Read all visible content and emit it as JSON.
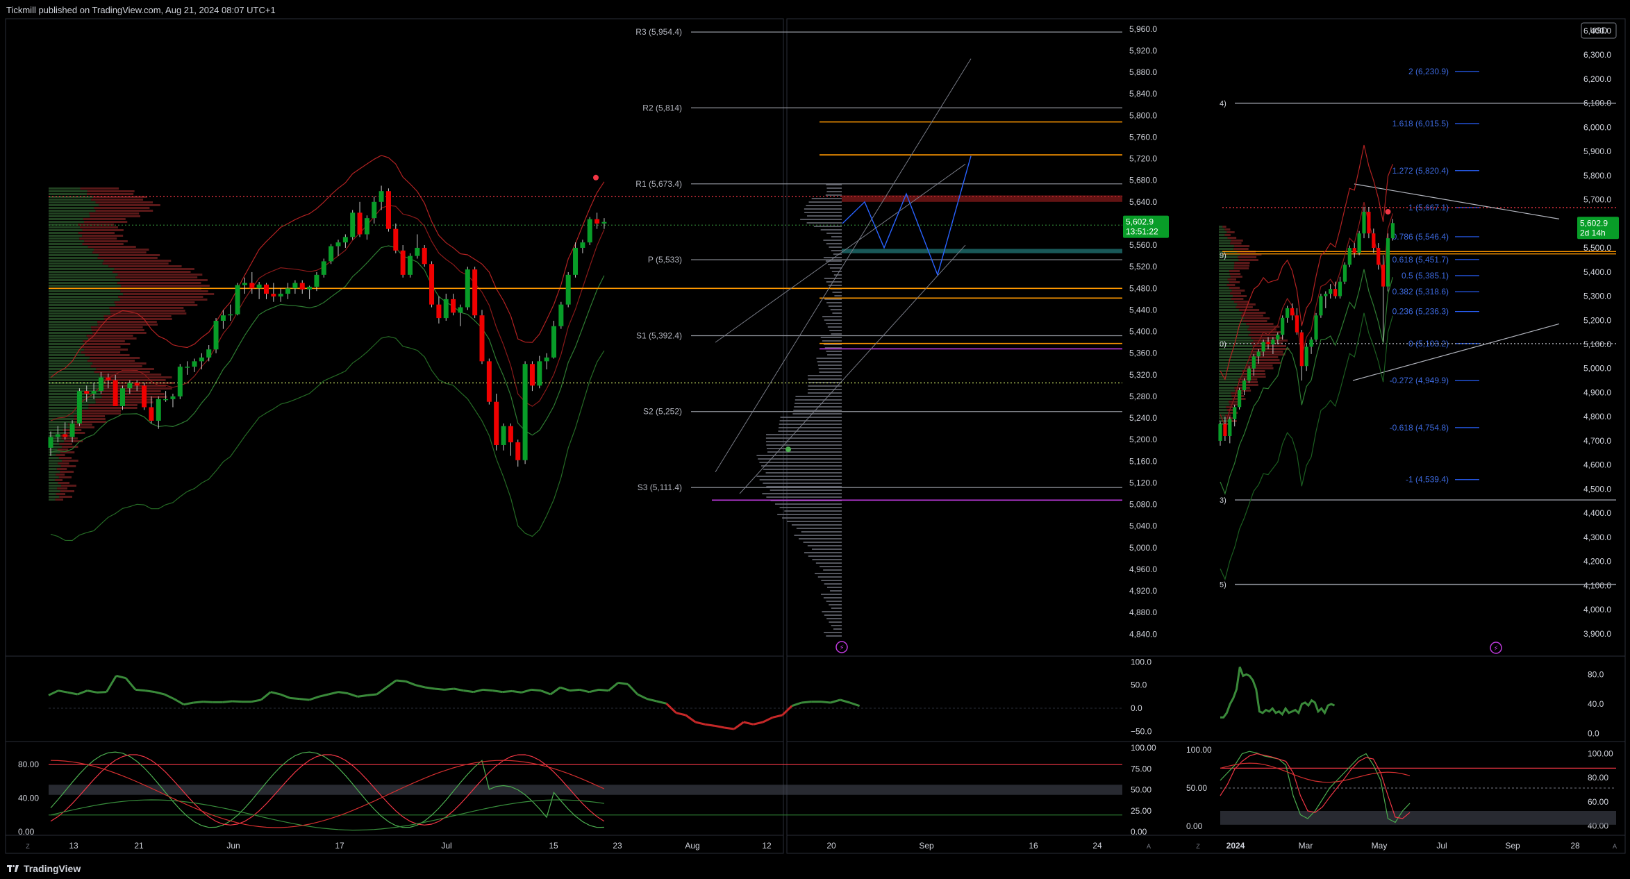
{
  "header": {
    "publisher_text": "Tickmill published on TradingView.com, Aug 21, 2024 08:07 UTC+1"
  },
  "footer": {
    "brand": "TradingView"
  },
  "colors": {
    "up": "#089d28",
    "down": "#f00000",
    "band_red": "#b22222",
    "band_green": "#2e7d32",
    "blue": "#2962ff",
    "orange": "#ff9800",
    "purple": "#c03adf",
    "teal": "#1f6f6f"
  },
  "chart_data": [
    {
      "type": "candlestick",
      "name_hint": "daily",
      "price_axis": [
        "5,960.0",
        "5,920.0",
        "5,880.0",
        "5,840.0",
        "5,800.0",
        "5,760.0",
        "5,720.0",
        "5,680.0",
        "5,640.0",
        "5,600.0",
        "5,560.0",
        "5,520.0",
        "5,480.0",
        "5,440.0",
        "5,400.0",
        "5,360.0",
        "5,320.0",
        "5,280.0",
        "5,240.0",
        "5,200.0",
        "5,160.0",
        "5,120.0",
        "5,080.0",
        "5,040.0",
        "5,000.0",
        "4,960.0",
        "4,920.0",
        "4,880.0",
        "4,840.0"
      ],
      "ylim": [
        4825,
        5970
      ],
      "time_axis": [
        "13",
        "21",
        "Jun",
        "17",
        "Jul",
        "15",
        "23",
        "Aug",
        "12",
        "20",
        "Sep",
        "16",
        "24"
      ],
      "last_price": "5,602.9",
      "countdown": "13:51:22",
      "pivots": [
        {
          "label": "R3 (5,954.4)",
          "value": 5954.4
        },
        {
          "label": "R2 (5,814)",
          "value": 5814
        },
        {
          "label": "R1 (5,673.4)",
          "value": 5673.4
        },
        {
          "label": "P (5,533)",
          "value": 5533
        },
        {
          "label": "S1 (5,392.4)",
          "value": 5392.4
        },
        {
          "label": "S2 (5,252)",
          "value": 5252
        },
        {
          "label": "S3 (5,111.4)",
          "value": 5111.4
        }
      ],
      "candles": [
        [
          5185,
          5215,
          5170,
          5205
        ],
        [
          5205,
          5225,
          5195,
          5210
        ],
        [
          5210,
          5232,
          5200,
          5205
        ],
        [
          5205,
          5236,
          5195,
          5230
        ],
        [
          5230,
          5295,
          5225,
          5290
        ],
        [
          5290,
          5300,
          5270,
          5285
        ],
        [
          5285,
          5305,
          5275,
          5290
        ],
        [
          5290,
          5325,
          5285,
          5315
        ],
        [
          5315,
          5322,
          5295,
          5310
        ],
        [
          5310,
          5320,
          5265,
          5262
        ],
        [
          5262,
          5300,
          5255,
          5295
        ],
        [
          5295,
          5310,
          5285,
          5305
        ],
        [
          5305,
          5310,
          5290,
          5300
        ],
        [
          5300,
          5305,
          5255,
          5260
        ],
        [
          5260,
          5280,
          5230,
          5235
        ],
        [
          5235,
          5280,
          5220,
          5275
        ],
        [
          5275,
          5290,
          5270,
          5275
        ],
        [
          5275,
          5285,
          5260,
          5280
        ],
        [
          5280,
          5340,
          5275,
          5335
        ],
        [
          5335,
          5345,
          5320,
          5335
        ],
        [
          5335,
          5350,
          5325,
          5345
        ],
        [
          5345,
          5360,
          5330,
          5352
        ],
        [
          5352,
          5375,
          5345,
          5367
        ],
        [
          5367,
          5425,
          5360,
          5420
        ],
        [
          5420,
          5440,
          5405,
          5430
        ],
        [
          5430,
          5450,
          5420,
          5432
        ],
        [
          5432,
          5490,
          5430,
          5486
        ],
        [
          5486,
          5500,
          5470,
          5490
        ],
        [
          5490,
          5510,
          5470,
          5480
        ],
        [
          5480,
          5492,
          5460,
          5487
        ],
        [
          5487,
          5490,
          5460,
          5470
        ],
        [
          5470,
          5490,
          5455,
          5465
        ],
        [
          5465,
          5480,
          5455,
          5470
        ],
        [
          5470,
          5490,
          5460,
          5480
        ],
        [
          5480,
          5495,
          5470,
          5490
        ],
        [
          5490,
          5495,
          5470,
          5478
        ],
        [
          5478,
          5485,
          5460,
          5483
        ],
        [
          5483,
          5510,
          5475,
          5505
        ],
        [
          5505,
          5535,
          5500,
          5530
        ],
        [
          5530,
          5562,
          5525,
          5558
        ],
        [
          5558,
          5570,
          5540,
          5565
        ],
        [
          5565,
          5580,
          5555,
          5575
        ],
        [
          5575,
          5625,
          5570,
          5620
        ],
        [
          5620,
          5640,
          5575,
          5580
        ],
        [
          5580,
          5615,
          5570,
          5610
        ],
        [
          5610,
          5650,
          5600,
          5640
        ],
        [
          5640,
          5670,
          5625,
          5660
        ],
        [
          5660,
          5665,
          5585,
          5590
        ],
        [
          5590,
          5600,
          5545,
          5550
        ],
        [
          5550,
          5560,
          5500,
          5505
        ],
        [
          5505,
          5545,
          5500,
          5540
        ],
        [
          5540,
          5580,
          5535,
          5555
        ],
        [
          5555,
          5560,
          5520,
          5525
        ],
        [
          5525,
          5530,
          5445,
          5450
        ],
        [
          5450,
          5465,
          5415,
          5425
        ],
        [
          5425,
          5470,
          5420,
          5460
        ],
        [
          5460,
          5470,
          5430,
          5435
        ],
        [
          5435,
          5450,
          5410,
          5445
        ],
        [
          5445,
          5520,
          5440,
          5515
        ],
        [
          5515,
          5520,
          5425,
          5430
        ],
        [
          5430,
          5440,
          5340,
          5345
        ],
        [
          5345,
          5350,
          5265,
          5270
        ],
        [
          5270,
          5285,
          5180,
          5190
        ],
        [
          5190,
          5230,
          5180,
          5225
        ],
        [
          5225,
          5230,
          5170,
          5195
        ],
        [
          5195,
          5200,
          5150,
          5162
        ],
        [
          5162,
          5345,
          5155,
          5340
        ],
        [
          5340,
          5345,
          5290,
          5300
        ],
        [
          5300,
          5355,
          5295,
          5345
        ],
        [
          5345,
          5360,
          5330,
          5352
        ],
        [
          5352,
          5420,
          5350,
          5410
        ],
        [
          5410,
          5455,
          5405,
          5450
        ],
        [
          5450,
          5510,
          5445,
          5505
        ],
        [
          5505,
          5565,
          5500,
          5555
        ],
        [
          5555,
          5570,
          5545,
          5565
        ],
        [
          5565,
          5612,
          5560,
          5608
        ],
        [
          5608,
          5620,
          5590,
          5600
        ],
        [
          5600,
          5610,
          5590,
          5602.9
        ]
      ]
    },
    {
      "type": "candlestick",
      "name_hint": "weekly",
      "currency": "USD",
      "price_axis": [
        "6,400.0",
        "6,300.0",
        "6,200.0",
        "6,100.0",
        "6,000.0",
        "5,900.0",
        "5,800.0",
        "5,700.0",
        "5,600.0",
        "5,500.0",
        "5,400.0",
        "5,300.0",
        "5,200.0",
        "5,100.0",
        "5,000.0",
        "4,900.0",
        "4,800.0",
        "4,700.0",
        "4,600.0",
        "4,500.0",
        "4,400.0",
        "4,300.0",
        "4,200.0",
        "4,100.0",
        "4,000.0",
        "3,900.0"
      ],
      "ylim": [
        3865,
        6430
      ],
      "time_axis": [
        "2024",
        "Mar",
        "May",
        "Jul",
        "Sep",
        "28"
      ],
      "last_price": "5,602.9",
      "countdown": "2d 14h",
      "fib_levels": [
        {
          "label": "2 (6,230.9)",
          "value": 6230.9
        },
        {
          "label": "1.618 (6,015.5)",
          "value": 6015.5
        },
        {
          "label": "1.272 (5,820.4)",
          "value": 5820.4
        },
        {
          "label": "1 (5,667.1)",
          "value": 5667.1
        },
        {
          "label": "0.786 (5,546.4)",
          "value": 5546.4
        },
        {
          "label": "0.618 (5,451.7)",
          "value": 5451.7
        },
        {
          "label": "0.5 (5,385.1)",
          "value": 5385.1
        },
        {
          "label": "0.382 (5,318.6)",
          "value": 5318.6
        },
        {
          "label": "0.236 (5,236.3)",
          "value": 5236.3
        },
        {
          "label": "0 (5,103.2)",
          "value": 5103.2
        },
        {
          "label": "-0.272 (4,949.9)",
          "value": 4949.9
        },
        {
          "label": "-0.618 (4,754.8)",
          "value": 4754.8
        },
        {
          "label": "-1 (4,539.4)",
          "value": 4539.4
        }
      ],
      "edge_labels": [
        "4)",
        "9)",
        "0)",
        "3)",
        "5)"
      ],
      "candles": [
        [
          4700,
          4780,
          4680,
          4770
        ],
        [
          4770,
          4800,
          4700,
          4720
        ],
        [
          4720,
          4800,
          4690,
          4790
        ],
        [
          4790,
          4850,
          4760,
          4840
        ],
        [
          4840,
          4920,
          4830,
          4910
        ],
        [
          4910,
          4960,
          4890,
          4950
        ],
        [
          4950,
          5010,
          4940,
          5000
        ],
        [
          5000,
          5060,
          4970,
          5050
        ],
        [
          5050,
          5080,
          5020,
          5070
        ],
        [
          5070,
          5120,
          5050,
          5110
        ],
        [
          5110,
          5130,
          5080,
          5100
        ],
        [
          5100,
          5130,
          5060,
          5120
        ],
        [
          5120,
          5150,
          5100,
          5140
        ],
        [
          5140,
          5220,
          5120,
          5210
        ],
        [
          5210,
          5260,
          5190,
          5250
        ],
        [
          5250,
          5270,
          5200,
          5220
        ],
        [
          5220,
          5250,
          5140,
          5150
        ],
        [
          5150,
          5160,
          4950,
          5010
        ],
        [
          5010,
          5100,
          4990,
          5090
        ],
        [
          5090,
          5130,
          5060,
          5120
        ],
        [
          5120,
          5230,
          5110,
          5220
        ],
        [
          5220,
          5310,
          5210,
          5300
        ],
        [
          5300,
          5320,
          5250,
          5310
        ],
        [
          5310,
          5350,
          5290,
          5330
        ],
        [
          5330,
          5360,
          5290,
          5300
        ],
        [
          5300,
          5380,
          5290,
          5360
        ],
        [
          5360,
          5440,
          5350,
          5430
        ],
        [
          5430,
          5510,
          5420,
          5500
        ],
        [
          5500,
          5520,
          5460,
          5480
        ],
        [
          5480,
          5570,
          5470,
          5560
        ],
        [
          5560,
          5670,
          5540,
          5650
        ],
        [
          5650,
          5670,
          5540,
          5560
        ],
        [
          5560,
          5580,
          5480,
          5500
        ],
        [
          5500,
          5520,
          5410,
          5430
        ],
        [
          5430,
          5470,
          5110,
          5340
        ],
        [
          5340,
          5560,
          5320,
          5540
        ],
        [
          5540,
          5620,
          5530,
          5602.9
        ]
      ]
    },
    {
      "type": "line",
      "name_hint": "daily oscillator 1",
      "ticks": [
        "100.0",
        "50.0",
        "0.0",
        "−50.0"
      ],
      "ylim": [
        -60,
        105
      ],
      "values": [
        28,
        38,
        34,
        30,
        38,
        34,
        35,
        70,
        65,
        40,
        38,
        35,
        30,
        20,
        8,
        12,
        14,
        13,
        13,
        15,
        14,
        14,
        18,
        35,
        30,
        22,
        20,
        18,
        25,
        30,
        35,
        32,
        25,
        28,
        30,
        45,
        60,
        58,
        50,
        45,
        42,
        40,
        42,
        38,
        35,
        40,
        38,
        35,
        37,
        34,
        40,
        38,
        30,
        45,
        38,
        40,
        35,
        40,
        38,
        55,
        52,
        30,
        20,
        15,
        10,
        -10,
        -15,
        -30,
        -35,
        -38,
        -42,
        -45,
        -30,
        -35,
        -30,
        -20,
        -15,
        5,
        12,
        14,
        14,
        12,
        18,
        12,
        5
      ]
    },
    {
      "type": "line",
      "name_hint": "daily oscillator 2",
      "ticks": [
        "100.00",
        "75.00",
        "50.00",
        "25.00",
        "0.00"
      ],
      "left_ticks": [
        "80.00",
        "40.00",
        "0.00"
      ],
      "ylim": [
        0,
        100
      ]
    },
    {
      "type": "line",
      "name_hint": "weekly oscillator 1",
      "ticks": [
        "80.0",
        "40.0",
        "0.0"
      ],
      "ylim": [
        -5,
        100
      ]
    },
    {
      "type": "line",
      "name_hint": "weekly oscillator 2",
      "ticks": [
        "100.00",
        "80.00",
        "60.00",
        "40.00"
      ],
      "left_ticks": [
        "100.00",
        "50.00",
        "0.00"
      ],
      "ylim": [
        35,
        105
      ]
    }
  ]
}
